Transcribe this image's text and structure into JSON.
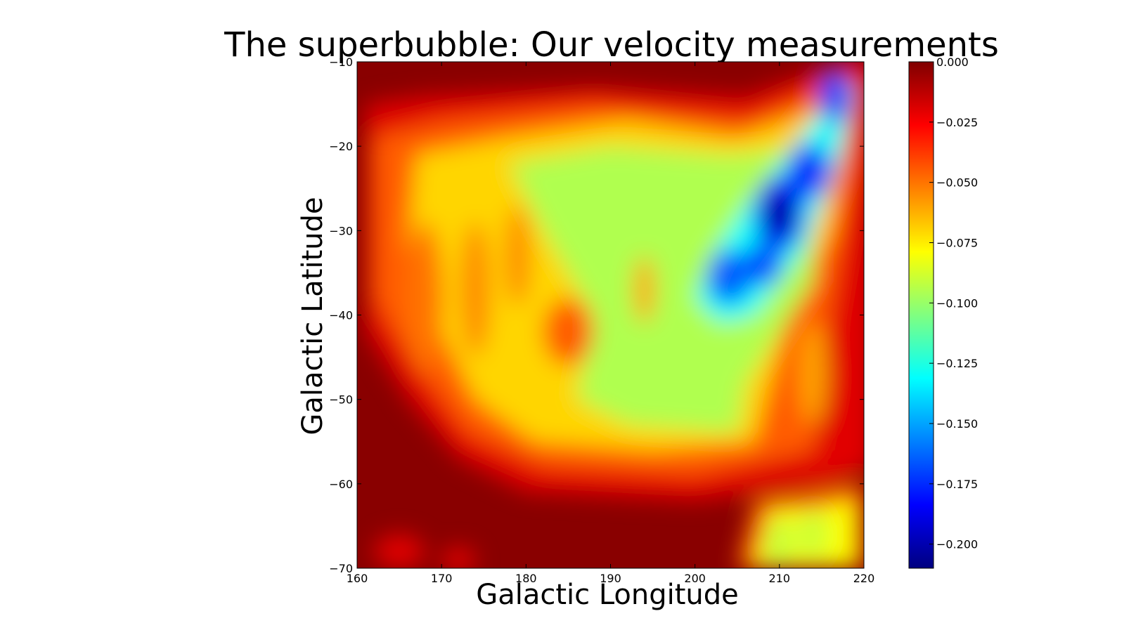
{
  "chart_data": {
    "type": "heatmap",
    "title": "The superbubble: Our velocity measurements",
    "xlabel": "Galactic Longitude",
    "ylabel": "Galactic Latitude",
    "xlim": [
      160,
      220
    ],
    "ylim": [
      -70,
      -10
    ],
    "xticks": [
      "160",
      "170",
      "180",
      "190",
      "200",
      "210",
      "220"
    ],
    "yticks": [
      "-10",
      "-20",
      "-30",
      "-40",
      "-50",
      "-60",
      "-70"
    ],
    "colormap": "jet",
    "colorbar": {
      "vmin": -0.21,
      "vmax": 0.0,
      "ticks": [
        "0.000",
        "-0.025",
        "-0.050",
        "-0.075",
        "-0.100",
        "-0.125",
        "-0.150",
        "-0.175",
        "-0.200"
      ]
    },
    "features": [
      {
        "lon": 210,
        "lat": -28,
        "value": -0.205
      },
      {
        "lon": 217,
        "lat": -13,
        "value": -0.185
      },
      {
        "lon": 213,
        "lat": -24,
        "value": -0.185
      },
      {
        "lon": 207,
        "lat": -35,
        "value": -0.18
      },
      {
        "lon": 203,
        "lat": -36,
        "value": -0.165
      },
      {
        "lon": 204,
        "lat": -45,
        "value": -0.125
      },
      {
        "lon": 197,
        "lat": -48,
        "value": -0.1
      },
      {
        "lon": 190,
        "lat": -26,
        "value": -0.1
      },
      {
        "lon": 185,
        "lat": -30,
        "value": -0.085
      },
      {
        "lon": 212,
        "lat": -67,
        "value": -0.09
      },
      {
        "lon": 185,
        "lat": -43,
        "value": -0.04
      }
    ]
  }
}
